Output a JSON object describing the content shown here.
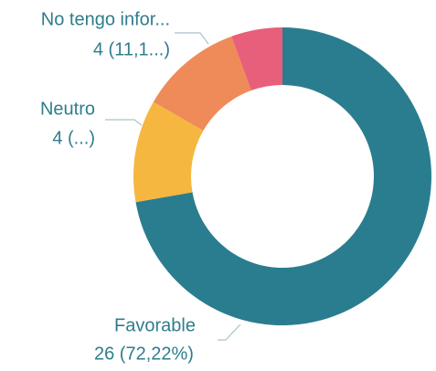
{
  "chart_data": {
    "type": "pie",
    "categories": [
      "Favorable",
      "Neutro",
      "No tengo infor...",
      null
    ],
    "values": [
      26,
      4,
      4,
      2
    ],
    "value_labels": [
      "26 (72,22%)",
      "4 (...)",
      "4 (11,1...)",
      null
    ],
    "colors": [
      "#2a7d8e",
      "#f5b73f",
      "#ee8b59",
      "#e85f7b"
    ]
  }
}
